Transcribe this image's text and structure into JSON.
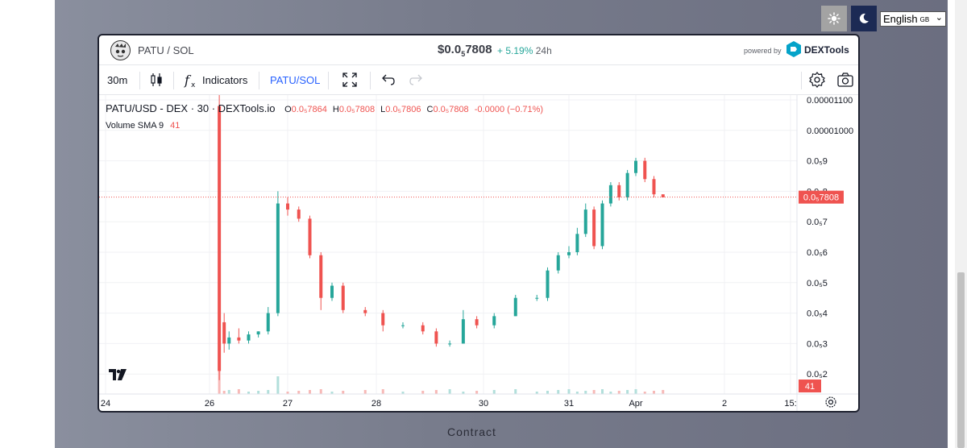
{
  "theme": {
    "light_icon": "sun-icon",
    "dark_icon": "moon-icon"
  },
  "language": {
    "selected": "English",
    "region": "GB"
  },
  "header": {
    "pair": "PATU / SOL",
    "price_prefix": "$0.0",
    "price_sub": "5",
    "price_suffix": "7808",
    "change": "+ 5.19%",
    "change_period": "24h",
    "powered_by": "powered by",
    "brand": "DEXTools"
  },
  "toolbar": {
    "interval": "30m",
    "indicators_label": "Indicators",
    "symbol": "PATU/SOL",
    "icons": [
      "candles-icon",
      "fx-icon",
      "fullscreen-icon",
      "undo-icon",
      "redo-icon",
      "settings-icon",
      "camera-icon"
    ]
  },
  "legend": {
    "title": "PATU/USD - DEX · 30 · DEXTools.io",
    "open_label": "O",
    "open": "0.0₅7864",
    "high_label": "H",
    "high": "0.0₅7808",
    "low_label": "L",
    "low": "0.0₅7806",
    "close_label": "C",
    "close": "0.0₅7808",
    "change": "-0.0000 (−0.71%)",
    "volume_label": "Volume SMA 9",
    "volume_value": "41"
  },
  "chart_data": {
    "type": "candlestick",
    "x_ticks": [
      "24",
      "26",
      "27",
      "28",
      "30",
      "31",
      "Apr",
      "2",
      "15:"
    ],
    "y_ticks": [
      "0.00001100",
      "0.00001000",
      "0.0₅9",
      "0.0₅8",
      "0.0₅7",
      "0.0₅6",
      "0.0₅5",
      "0.0₅4",
      "0.0₅3",
      "0.0₅2"
    ],
    "ylim": [
      1.8e-06,
      1.1e-05
    ],
    "current_price_label": "0.0₅7808",
    "current_price": 7.808e-06,
    "volume_label": "41",
    "up_color": "#26a69a",
    "down_color": "#ef5350",
    "candles": [
      {
        "x": "26 03:00",
        "o": 1.08e-05,
        "h": 1.13e-05,
        "l": 1.8e-06,
        "c": 2.1e-06
      },
      {
        "x": "26 04:30",
        "o": 3.7e-06,
        "h": 4e-06,
        "l": 2.7e-06,
        "c": 3e-06
      },
      {
        "x": "26 06:00",
        "o": 3e-06,
        "h": 3.4e-06,
        "l": 2.8e-06,
        "c": 3.2e-06
      },
      {
        "x": "26 09:00",
        "o": 3.2e-06,
        "h": 3.5e-06,
        "l": 3e-06,
        "c": 3.1e-06
      },
      {
        "x": "26 12:00",
        "o": 3.1e-06,
        "h": 3.4e-06,
        "l": 3e-06,
        "c": 3.3e-06
      },
      {
        "x": "26 15:00",
        "o": 3.3e-06,
        "h": 3.4e-06,
        "l": 3.2e-06,
        "c": 3.4e-06
      },
      {
        "x": "26 18:00",
        "o": 3.4e-06,
        "h": 4.2e-06,
        "l": 3.3e-06,
        "c": 4e-06
      },
      {
        "x": "26 21:00",
        "o": 4e-06,
        "h": 8e-06,
        "l": 3.9e-06,
        "c": 7.6e-06
      },
      {
        "x": "27 00:00",
        "o": 7.6e-06,
        "h": 7.8e-06,
        "l": 7.2e-06,
        "c": 7.4e-06
      },
      {
        "x": "27 03:00",
        "o": 7.4e-06,
        "h": 7.5e-06,
        "l": 7e-06,
        "c": 7.1e-06
      },
      {
        "x": "27 06:00",
        "o": 7.1e-06,
        "h": 7.2e-06,
        "l": 5.8e-06,
        "c": 5.9e-06
      },
      {
        "x": "27 09:00",
        "o": 5.9e-06,
        "h": 6e-06,
        "l": 4.1e-06,
        "c": 4.5e-06
      },
      {
        "x": "27 12:00",
        "o": 4.5e-06,
        "h": 5e-06,
        "l": 4.4e-06,
        "c": 4.9e-06
      },
      {
        "x": "27 15:00",
        "o": 4.9e-06,
        "h": 5e-06,
        "l": 4e-06,
        "c": 4.1e-06
      },
      {
        "x": "27 21:00",
        "o": 4.1e-06,
        "h": 4.2e-06,
        "l": 3.9e-06,
        "c": 4e-06
      },
      {
        "x": "28 03:00",
        "o": 4e-06,
        "h": 4.1e-06,
        "l": 3.4e-06,
        "c": 3.6e-06
      },
      {
        "x": "28 12:00",
        "o": 3.6e-06,
        "h": 3.7e-06,
        "l": 3.5e-06,
        "c": 3.6e-06
      },
      {
        "x": "28 21:00",
        "o": 3.6e-06,
        "h": 3.7e-06,
        "l": 3.3e-06,
        "c": 3.4e-06
      },
      {
        "x": "29 03:00",
        "o": 3.4e-06,
        "h": 3.5e-06,
        "l": 2.9e-06,
        "c": 3e-06
      },
      {
        "x": "29 09:00",
        "o": 3e-06,
        "h": 3.1e-06,
        "l": 2.9e-06,
        "c": 3e-06
      },
      {
        "x": "29 15:00",
        "o": 3e-06,
        "h": 4.1e-06,
        "l": 3e-06,
        "c": 3.8e-06
      },
      {
        "x": "29 21:00",
        "o": 3.8e-06,
        "h": 3.9e-06,
        "l": 3.5e-06,
        "c": 3.6e-06
      },
      {
        "x": "30 03:00",
        "o": 3.6e-06,
        "h": 4e-06,
        "l": 3.5e-06,
        "c": 3.9e-06
      },
      {
        "x": "30 09:00",
        "o": 3.9e-06,
        "h": 4.6e-06,
        "l": 3.9e-06,
        "c": 4.5e-06
      },
      {
        "x": "30 15:00",
        "o": 4.5e-06,
        "h": 4.6e-06,
        "l": 4.4e-06,
        "c": 4.5e-06
      },
      {
        "x": "30 18:00",
        "o": 4.5e-06,
        "h": 5.5e-06,
        "l": 4.4e-06,
        "c": 5.4e-06
      },
      {
        "x": "30 21:00",
        "o": 5.4e-06,
        "h": 6e-06,
        "l": 5.3e-06,
        "c": 5.9e-06
      },
      {
        "x": "31 00:00",
        "o": 5.9e-06,
        "h": 6.2e-06,
        "l": 5.8e-06,
        "c": 6e-06
      },
      {
        "x": "31 03:00",
        "o": 6e-06,
        "h": 6.8e-06,
        "l": 5.9e-06,
        "c": 6.6e-06
      },
      {
        "x": "31 06:00",
        "o": 6.6e-06,
        "h": 7.6e-06,
        "l": 6.5e-06,
        "c": 7.4e-06
      },
      {
        "x": "31 09:00",
        "o": 7.4e-06,
        "h": 7.5e-06,
        "l": 6.1e-06,
        "c": 6.2e-06
      },
      {
        "x": "31 12:00",
        "o": 6.2e-06,
        "h": 7.7e-06,
        "l": 6.1e-06,
        "c": 7.6e-06
      },
      {
        "x": "31 15:00",
        "o": 7.6e-06,
        "h": 8.3e-06,
        "l": 7.5e-06,
        "c": 8.2e-06
      },
      {
        "x": "31 18:00",
        "o": 8.2e-06,
        "h": 8.3e-06,
        "l": 7.7e-06,
        "c": 7.8e-06
      },
      {
        "x": "31 21:00",
        "o": 7.8e-06,
        "h": 8.7e-06,
        "l": 7.7e-06,
        "c": 8.6e-06
      },
      {
        "x": "Apr 00:00",
        "o": 8.6e-06,
        "h": 9.1e-06,
        "l": 8.5e-06,
        "c": 9e-06
      },
      {
        "x": "Apr 03:00",
        "o": 9e-06,
        "h": 9.1e-06,
        "l": 8.3e-06,
        "c": 8.4e-06
      },
      {
        "x": "Apr 06:00",
        "o": 8.4e-06,
        "h": 8.5e-06,
        "l": 7.8e-06,
        "c": 7.9e-06
      },
      {
        "x": "Apr 09:00",
        "o": 7.9e-06,
        "h": 7.9e-06,
        "l": 7.8e-06,
        "c": 7.8e-06
      }
    ]
  },
  "footer": {
    "contract_label": "Contract"
  }
}
